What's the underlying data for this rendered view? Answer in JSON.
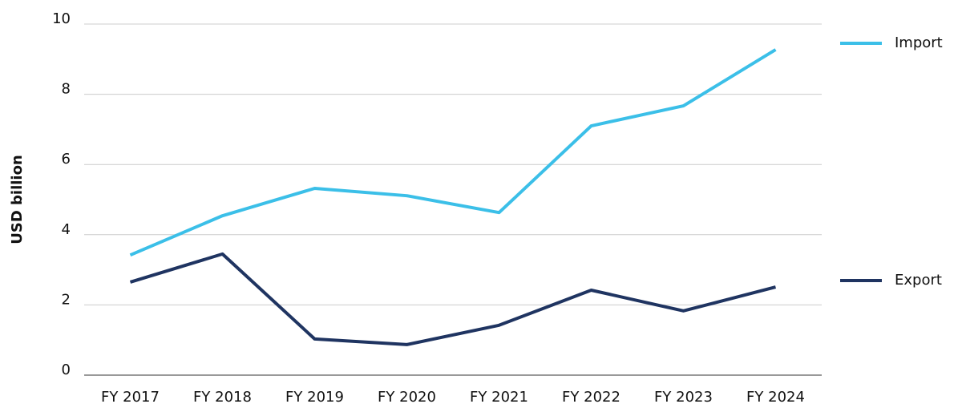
{
  "chart_data": {
    "type": "line",
    "y_label": "USD billion",
    "categories": [
      "FY 2017",
      "FY 2018",
      "FY 2019",
      "FY 2020",
      "FY 2021",
      "FY 2022",
      "FY 2023",
      "FY 2024"
    ],
    "series": [
      {
        "name": "Import",
        "color": "#3bbfe8",
        "values": [
          3.42,
          4.54,
          5.32,
          5.11,
          4.63,
          7.1,
          7.67,
          9.27
        ]
      },
      {
        "name": "Export",
        "color": "#1f3461",
        "values": [
          2.65,
          3.45,
          1.03,
          0.87,
          1.42,
          2.42,
          1.83,
          2.51
        ]
      }
    ],
    "ylim": [
      0,
      10
    ],
    "yticks": [
      0,
      2,
      4,
      6,
      8,
      10
    ],
    "grid": true,
    "legend": "right"
  }
}
